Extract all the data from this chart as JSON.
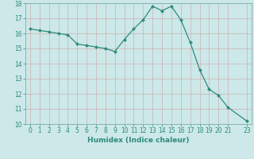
{
  "x": [
    0,
    1,
    2,
    3,
    4,
    5,
    6,
    7,
    8,
    9,
    10,
    11,
    12,
    13,
    14,
    15,
    16,
    17,
    18,
    19,
    20,
    21,
    23
  ],
  "y": [
    16.3,
    16.2,
    16.1,
    16.0,
    15.9,
    15.3,
    15.2,
    15.1,
    15.0,
    14.8,
    15.6,
    16.3,
    16.9,
    17.8,
    17.5,
    17.8,
    16.9,
    15.4,
    13.6,
    12.3,
    11.9,
    11.1,
    10.2
  ],
  "line_color": "#2e8b7a",
  "marker": "D",
  "marker_size": 2.0,
  "bg_color": "#cce8e8",
  "grid_color": "#aacccc",
  "xlabel": "Humidex (Indice chaleur)",
  "ylim": [
    10,
    18
  ],
  "xlim_min": -0.5,
  "xlim_max": 23.5,
  "yticks": [
    10,
    11,
    12,
    13,
    14,
    15,
    16,
    17,
    18
  ],
  "xticks": [
    0,
    1,
    2,
    3,
    4,
    5,
    6,
    7,
    8,
    9,
    10,
    11,
    12,
    13,
    14,
    15,
    16,
    17,
    18,
    19,
    20,
    21,
    23
  ],
  "xtick_labels": [
    "0",
    "1",
    "2",
    "3",
    "4",
    "5",
    "6",
    "7",
    "8",
    "9",
    "10",
    "11",
    "12",
    "13",
    "14",
    "15",
    "16",
    "17",
    "18",
    "19",
    "20",
    "21",
    "23"
  ],
  "label_fontsize": 6.5,
  "tick_fontsize": 5.5
}
